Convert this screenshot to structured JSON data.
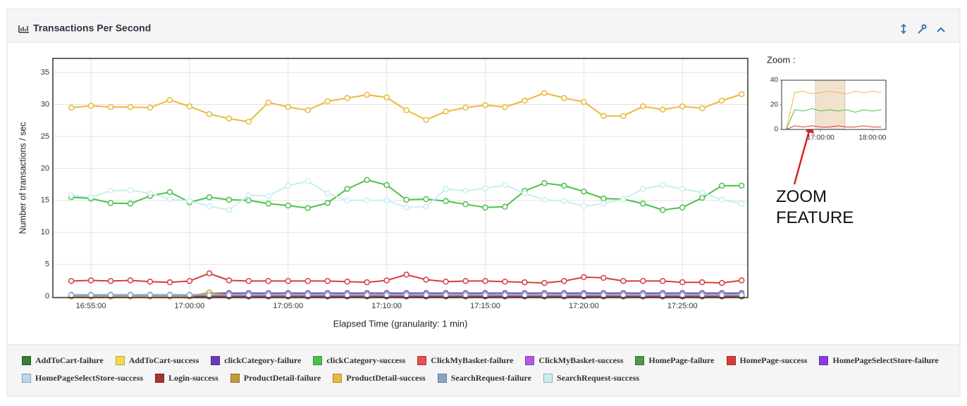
{
  "chart_data": [
    {
      "type": "line",
      "title": "Transactions Per Second",
      "x_label": "Elapsed Time (granularity: 1 min)",
      "y_label": "Number of transactions / sec",
      "grid": true,
      "markers": true,
      "xlim": [
        "16:53:04",
        "17:28:19"
      ],
      "xticks": [
        "16:55:00",
        "17:00:00",
        "17:05:00",
        "17:10:00",
        "17:15:00",
        "17:20:00",
        "17:25:00"
      ],
      "ylim": [
        -0.2,
        37.2
      ],
      "yticks": [
        0,
        5,
        10,
        15,
        20,
        25,
        30,
        35
      ],
      "x": [
        "16:54:00",
        "16:55:00",
        "16:56:00",
        "16:57:00",
        "16:58:00",
        "16:59:00",
        "17:00:00",
        "17:01:00",
        "17:02:00",
        "17:03:00",
        "17:04:00",
        "17:05:00",
        "17:06:00",
        "17:07:00",
        "17:08:00",
        "17:09:00",
        "17:10:00",
        "17:11:00",
        "17:12:00",
        "17:13:00",
        "17:14:00",
        "17:15:00",
        "17:16:00",
        "17:17:00",
        "17:18:00",
        "17:19:00",
        "17:20:00",
        "17:21:00",
        "17:22:00",
        "17:23:00",
        "17:24:00",
        "17:25:00",
        "17:26:00",
        "17:27:00",
        "17:28:00"
      ],
      "series": [
        {
          "name": "AddToCart-failure",
          "color": "#3a7d3a",
          "values": [
            0,
            0,
            0,
            0,
            0,
            0,
            0,
            0,
            0,
            0,
            0,
            0,
            0,
            0,
            0,
            0,
            0,
            0,
            0,
            0,
            0,
            0,
            0,
            0,
            0,
            0,
            0,
            0,
            0,
            0,
            0,
            0,
            0,
            0,
            0
          ]
        },
        {
          "name": "AddToCart-success",
          "color": "#f2dc4a",
          "values": [
            0,
            0,
            0,
            0,
            0,
            0,
            0,
            0,
            0,
            0,
            0,
            0,
            0,
            0,
            0,
            0,
            0,
            0,
            0,
            0,
            0,
            0,
            0,
            0,
            0,
            0,
            0,
            0,
            0,
            0,
            0,
            0,
            0,
            0,
            0
          ]
        },
        {
          "name": "clickCategory-failure",
          "color": "#6a3cb8",
          "values": [
            0,
            0,
            0,
            0,
            0,
            0,
            0,
            0.5,
            0.5,
            0.5,
            0.5,
            0.5,
            0.5,
            0.5,
            0.5,
            0.5,
            0.5,
            0.5,
            0.5,
            0.5,
            0.5,
            0.5,
            0.5,
            0.5,
            0.5,
            0.5,
            0.5,
            0.5,
            0.5,
            0.5,
            0.5,
            0.5,
            0.5,
            0.5,
            0.5
          ]
        },
        {
          "name": "clickCategory-success",
          "color": "#4cc04c",
          "values": [
            15.5,
            15.3,
            14.6,
            14.5,
            15.7,
            16.3,
            14.7,
            15.5,
            15.1,
            15.0,
            14.5,
            14.2,
            13.8,
            14.6,
            16.8,
            18.2,
            17.4,
            15.1,
            15.2,
            14.9,
            14.4,
            13.9,
            14.0,
            16.5,
            17.7,
            17.3,
            16.4,
            15.3,
            15.2,
            14.5,
            13.5,
            13.9,
            15.4,
            17.3,
            17.3
          ]
        },
        {
          "name": "ClickMyBasket-failure",
          "color": "#e85050",
          "values": [
            0,
            0,
            0,
            0,
            0,
            0,
            0,
            0,
            0,
            0,
            0,
            0,
            0,
            0,
            0,
            0,
            0,
            0,
            0,
            0,
            0,
            0,
            0,
            0,
            0,
            0,
            0,
            0,
            0,
            0,
            0,
            0,
            0,
            0,
            0
          ]
        },
        {
          "name": "ClickMyBasket-success",
          "color": "#b05ae0",
          "values": [
            0,
            0,
            0,
            0,
            0,
            0,
            0,
            0,
            0,
            0,
            0,
            0,
            0,
            0,
            0,
            0,
            0,
            0,
            0,
            0,
            0,
            0,
            0,
            0,
            0,
            0,
            0,
            0,
            0,
            0,
            0,
            0,
            0,
            0,
            0
          ]
        },
        {
          "name": "HomePage-failure",
          "color": "#4a9a4a",
          "values": [
            0,
            0,
            0,
            0,
            0,
            0,
            0,
            0,
            0,
            0,
            0,
            0,
            0,
            0,
            0,
            0,
            0,
            0,
            0,
            0,
            0,
            0,
            0,
            0,
            0,
            0,
            0,
            0,
            0,
            0,
            0,
            0,
            0,
            0,
            0
          ]
        },
        {
          "name": "HomePage-success",
          "color": "#d43f3a",
          "values": [
            2.4,
            2.5,
            2.4,
            2.5,
            2.3,
            2.2,
            2.4,
            3.6,
            2.5,
            2.4,
            2.4,
            2.4,
            2.4,
            2.4,
            2.3,
            2.2,
            2.5,
            3.4,
            2.6,
            2.3,
            2.4,
            2.4,
            2.3,
            2.2,
            2.1,
            2.4,
            3.0,
            2.9,
            2.4,
            2.4,
            2.4,
            2.2,
            2.2,
            2.1,
            2.5
          ]
        },
        {
          "name": "HomePageSelectStore-failure",
          "color": "#8a3ce0",
          "values": [
            0,
            0,
            0,
            0,
            0,
            0,
            0,
            0,
            0,
            0,
            0,
            0,
            0,
            0,
            0,
            0,
            0,
            0,
            0,
            0,
            0,
            0,
            0,
            0,
            0,
            0,
            0,
            0,
            0,
            0,
            0,
            0,
            0,
            0,
            0
          ]
        },
        {
          "name": "HomePageSelectStore-success",
          "color": "#b8d6f2",
          "values": [
            0.3,
            0.3,
            0.3,
            0.3,
            0.3,
            0.3,
            0.3,
            0.3,
            0.3,
            0.3,
            0.3,
            0.3,
            0.3,
            0.3,
            0.3,
            0.3,
            0.3,
            0.3,
            0.3,
            0.3,
            0.3,
            0.3,
            0.3,
            0.3,
            0.3,
            0.3,
            0.3,
            0.3,
            0.3,
            0.3,
            0.3,
            0.3,
            0.3,
            0.3,
            0.3
          ]
        },
        {
          "name": "Login-success",
          "color": "#a83232",
          "values": [
            0,
            0,
            0,
            0,
            0,
            0,
            0,
            0,
            0,
            0,
            0,
            0,
            0,
            0,
            0,
            0,
            0,
            0,
            0,
            0,
            0,
            0,
            0,
            0,
            0,
            0,
            0,
            0,
            0,
            0,
            0,
            0,
            0,
            0,
            0
          ]
        },
        {
          "name": "ProductDetail-failure",
          "color": "#c49a3c",
          "values": [
            0,
            0,
            0,
            0,
            0,
            0,
            0,
            0.6,
            0.2,
            0.2,
            0.2,
            0.2,
            0.2,
            0.2,
            0.2,
            0.2,
            0.2,
            0.2,
            0.2,
            0.2,
            0.2,
            0.2,
            0.2,
            0.2,
            0.2,
            0.2,
            0.2,
            0.2,
            0.2,
            0.2,
            0.2,
            0.2,
            0.2,
            0.2,
            0.2
          ]
        },
        {
          "name": "ProductDetail-success",
          "color": "#e9b93a",
          "values": [
            29.5,
            29.8,
            29.6,
            29.6,
            29.5,
            30.7,
            29.7,
            28.5,
            27.8,
            27.3,
            30.3,
            29.6,
            29.1,
            30.5,
            31.0,
            31.5,
            31.1,
            29.1,
            27.6,
            28.9,
            29.5,
            29.9,
            29.6,
            30.6,
            31.8,
            31.0,
            30.4,
            28.2,
            28.2,
            29.7,
            29.2,
            29.7,
            29.4,
            30.6,
            31.6
          ]
        },
        {
          "name": "SearchRequest-failure",
          "color": "#86a6c6",
          "values": [
            0.2,
            0.2,
            0.2,
            0.2,
            0.2,
            0.2,
            0.2,
            0.2,
            0.2,
            0.2,
            0.2,
            0.2,
            0.2,
            0.2,
            0.2,
            0.2,
            0.2,
            0.2,
            0.2,
            0.2,
            0.2,
            0.2,
            0.2,
            0.2,
            0.2,
            0.2,
            0.2,
            0.2,
            0.2,
            0.2,
            0.2,
            0.2,
            0.2,
            0.2,
            0.2
          ]
        },
        {
          "name": "SearchRequest-success",
          "color": "#c8eef2",
          "values": [
            15.8,
            15.5,
            16.5,
            16.6,
            16.1,
            15.2,
            14.9,
            14.1,
            13.5,
            15.8,
            15.7,
            17.3,
            18.0,
            16.1,
            15.0,
            15.0,
            15.0,
            13.9,
            14.0,
            16.8,
            16.5,
            16.9,
            17.4,
            16.1,
            15.1,
            14.9,
            14.1,
            14.5,
            15.2,
            16.8,
            17.4,
            16.8,
            16.2,
            15.1,
            14.5
          ]
        }
      ]
    },
    {
      "type": "line",
      "title": "Zoom :",
      "annotation": "ZOOM FEATURE",
      "grid": false,
      "markers": false,
      "xlim": [
        "16:14:47",
        "18:15:37"
      ],
      "xticks": [
        "17:00:00",
        "18:00:00"
      ],
      "ylim": [
        0,
        40
      ],
      "yticks": [
        0,
        20,
        40
      ],
      "selection": [
        "16:54:00",
        "17:28:00"
      ],
      "x": [
        "16:20:00",
        "16:30:00",
        "16:40:00",
        "16:50:00",
        "17:00:00",
        "17:10:00",
        "17:20:00",
        "17:30:00",
        "17:40:00",
        "17:50:00",
        "18:00:00",
        "18:10:00"
      ],
      "series": [
        {
          "color": "#e9b93a",
          "values": [
            0,
            30,
            31,
            29,
            30,
            31,
            30,
            29,
            31,
            30,
            31,
            30
          ]
        },
        {
          "color": "#4cc04c",
          "values": [
            0,
            16,
            15,
            17,
            15,
            16,
            15,
            16,
            14,
            16,
            15,
            16
          ]
        },
        {
          "color": "#d43f3a",
          "values": [
            0,
            3,
            2,
            3,
            2,
            2,
            3,
            2,
            2,
            3,
            2,
            2
          ]
        }
      ]
    }
  ]
}
